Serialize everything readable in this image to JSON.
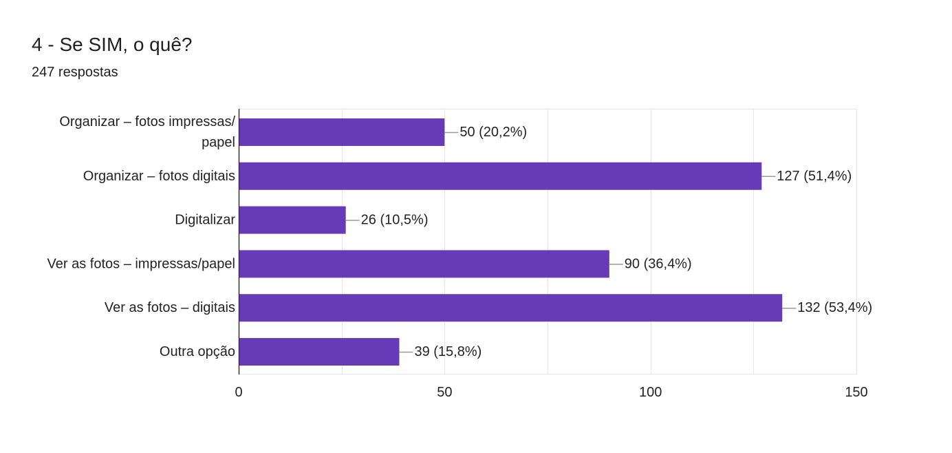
{
  "header": {
    "title": "4 - Se SIM, o quê?",
    "responses": "247 respostas"
  },
  "colors": {
    "bar": "#673ab7",
    "grid": "#e6e6e6",
    "axis": "#333333",
    "leader": "#999999",
    "text": "#222222"
  },
  "chart_data": {
    "type": "bar",
    "orientation": "horizontal",
    "title": "4 - Se SIM, o quê?",
    "subtitle": "247 respostas",
    "categories": [
      [
        "Organizar – fotos impressas/",
        "papel"
      ],
      [
        "Organizar – fotos digitais"
      ],
      [
        "Digitalizar"
      ],
      [
        "Ver as fotos – impressas/papel"
      ],
      [
        "Ver as fotos – digitais"
      ],
      [
        "Outra opção"
      ]
    ],
    "values": [
      50,
      127,
      26,
      90,
      132,
      39
    ],
    "data_labels": [
      "50 (20,2%)",
      "127 (51,4%)",
      "26 (10,5%)",
      "90 (36,4%)",
      "132 (53,4%)",
      "39 (15,8%)"
    ],
    "xlim": [
      0,
      150
    ],
    "xticks": [
      0,
      50,
      100,
      150
    ],
    "xtick_labels": [
      "0",
      "50",
      "100",
      "150"
    ],
    "grid": true,
    "legend": "none"
  }
}
